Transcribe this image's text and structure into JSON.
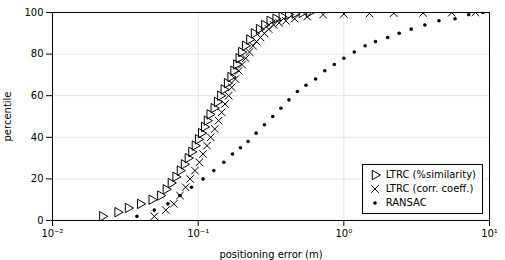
{
  "chart_data": {
    "type": "scatter",
    "xlabel": "positioning error (m)",
    "ylabel": "percentile",
    "log": "x",
    "xlim": [
      0.01,
      10
    ],
    "xticks": [
      {
        "value": 0.01,
        "label": "10⁻²"
      },
      {
        "value": 0.1,
        "label": "10⁻¹"
      },
      {
        "value": 1,
        "label": "10⁰"
      },
      {
        "value": 10,
        "label": "10¹"
      }
    ],
    "ylim": [
      0,
      100
    ],
    "yticks": [
      0,
      20,
      40,
      60,
      80,
      100
    ],
    "grid": true,
    "legend": "lower right",
    "series": [
      {
        "name": "LTRC (%similarity)",
        "marker": "triangle_right",
        "color": "#000000",
        "x": [
          0.022,
          0.028,
          0.033,
          0.04,
          0.048,
          0.055,
          0.06,
          0.065,
          0.07,
          0.075,
          0.08,
          0.085,
          0.09,
          0.095,
          0.1,
          0.105,
          0.11,
          0.115,
          0.12,
          0.128,
          0.135,
          0.142,
          0.15,
          0.158,
          0.167,
          0.175,
          0.183,
          0.19,
          0.198,
          0.21,
          0.225,
          0.242,
          0.262,
          0.285,
          0.31,
          0.34,
          0.375,
          0.415,
          0.46,
          0.515,
          0.58
        ],
        "values": [
          2,
          4,
          6,
          8,
          10,
          12,
          15,
          18,
          21,
          24,
          27,
          30,
          33,
          36,
          39,
          42,
          45,
          48,
          51,
          54,
          57,
          60,
          63,
          66,
          69,
          72,
          75,
          78,
          81,
          84,
          87,
          90,
          92,
          94,
          96,
          97,
          98,
          99,
          99.5,
          99.8,
          100
        ]
      },
      {
        "name": "LTRC (corr. coeff.)",
        "marker": "x",
        "color": "#000000",
        "x": [
          0.05,
          0.06,
          0.068,
          0.075,
          0.082,
          0.088,
          0.095,
          0.102,
          0.108,
          0.115,
          0.122,
          0.13,
          0.138,
          0.145,
          0.153,
          0.162,
          0.17,
          0.18,
          0.19,
          0.2,
          0.212,
          0.225,
          0.238,
          0.252,
          0.268,
          0.285,
          0.305,
          0.33,
          0.36,
          0.4,
          0.46,
          0.56,
          0.72,
          1.0,
          1.5,
          2.2,
          3.5,
          5.5,
          8.0
        ],
        "values": [
          2,
          5,
          8,
          12,
          16,
          20,
          24,
          28,
          32,
          36,
          40,
          44,
          48,
          52,
          56,
          60,
          64,
          68,
          72,
          75,
          78,
          81,
          84,
          86,
          88,
          90,
          92,
          94,
          95,
          96,
          97,
          98,
          99,
          99.3,
          99.5,
          99.7,
          99.8,
          99.9,
          100
        ]
      },
      {
        "name": "RANSAC",
        "marker": "dot",
        "color": "#000000",
        "x": [
          0.038,
          0.05,
          0.062,
          0.075,
          0.09,
          0.108,
          0.128,
          0.15,
          0.172,
          0.195,
          0.22,
          0.25,
          0.285,
          0.325,
          0.37,
          0.42,
          0.48,
          0.55,
          0.64,
          0.74,
          0.86,
          1.0,
          1.18,
          1.4,
          1.65,
          2.0,
          2.4,
          2.9,
          3.6,
          4.5,
          5.8,
          7.2,
          9.0
        ],
        "values": [
          2,
          5,
          8,
          12,
          16,
          20,
          24,
          28,
          32,
          35,
          38,
          42,
          46,
          50,
          54,
          58,
          62,
          65,
          68,
          72,
          75,
          78,
          81,
          84,
          86,
          88,
          90,
          92,
          94,
          96,
          97,
          99,
          100
        ]
      }
    ]
  }
}
